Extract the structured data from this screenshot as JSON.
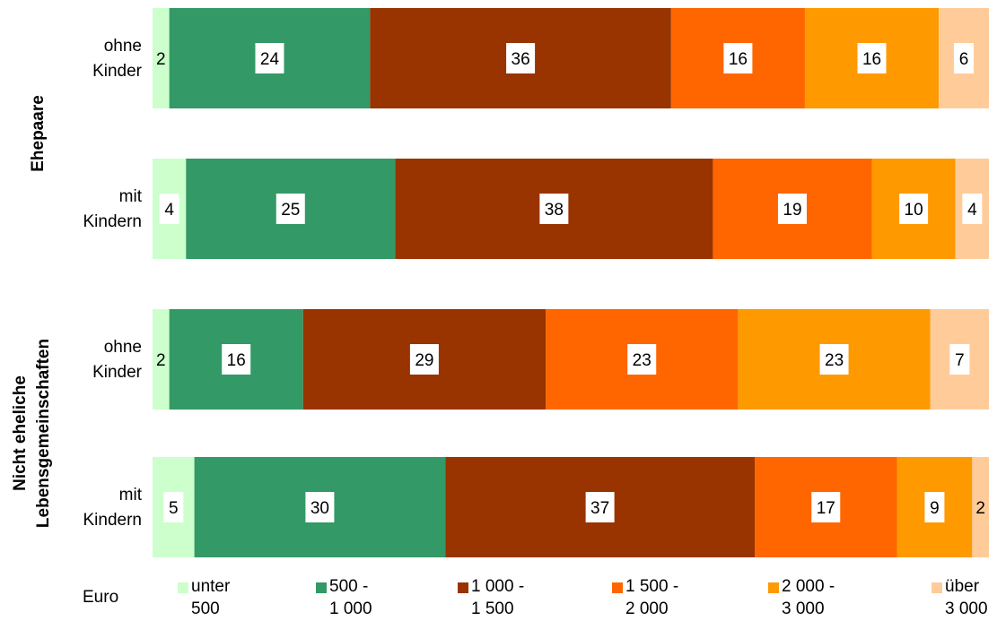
{
  "chart_data": {
    "type": "bar",
    "orientation": "horizontal",
    "stacked": true,
    "percent_stacked": true,
    "groups": [
      {
        "label": "Ehepaare",
        "rows": [
          0,
          1
        ]
      },
      {
        "label": "Nicht eheliche\nLebensgemeinschaften",
        "rows": [
          2,
          3
        ]
      }
    ],
    "categories": [
      "ohne\nKinder",
      "mit\nKindern",
      "ohne\nKinder",
      "mit\nKindern"
    ],
    "series": [
      {
        "name": "unter\n500",
        "color": "#ccffcc",
        "values": [
          2,
          4,
          2,
          5
        ]
      },
      {
        "name": "500 -\n1 000",
        "color": "#339966",
        "values": [
          24,
          25,
          16,
          30
        ]
      },
      {
        "name": "1 000 -\n1 500",
        "color": "#993300",
        "values": [
          36,
          38,
          29,
          37
        ]
      },
      {
        "name": "1 500 -\n2 000",
        "color": "#ff6600",
        "values": [
          16,
          19,
          23,
          17
        ]
      },
      {
        "name": "2 000 -\n3 000",
        "color": "#ff9900",
        "values": [
          16,
          10,
          23,
          9
        ]
      },
      {
        "name": "über\n3 000",
        "color": "#ffcc99",
        "values": [
          6,
          4,
          7,
          2
        ]
      }
    ],
    "legend": {
      "unit_label": "Euro",
      "position": "bottom"
    },
    "grid": false,
    "axis_ticks": false
  }
}
